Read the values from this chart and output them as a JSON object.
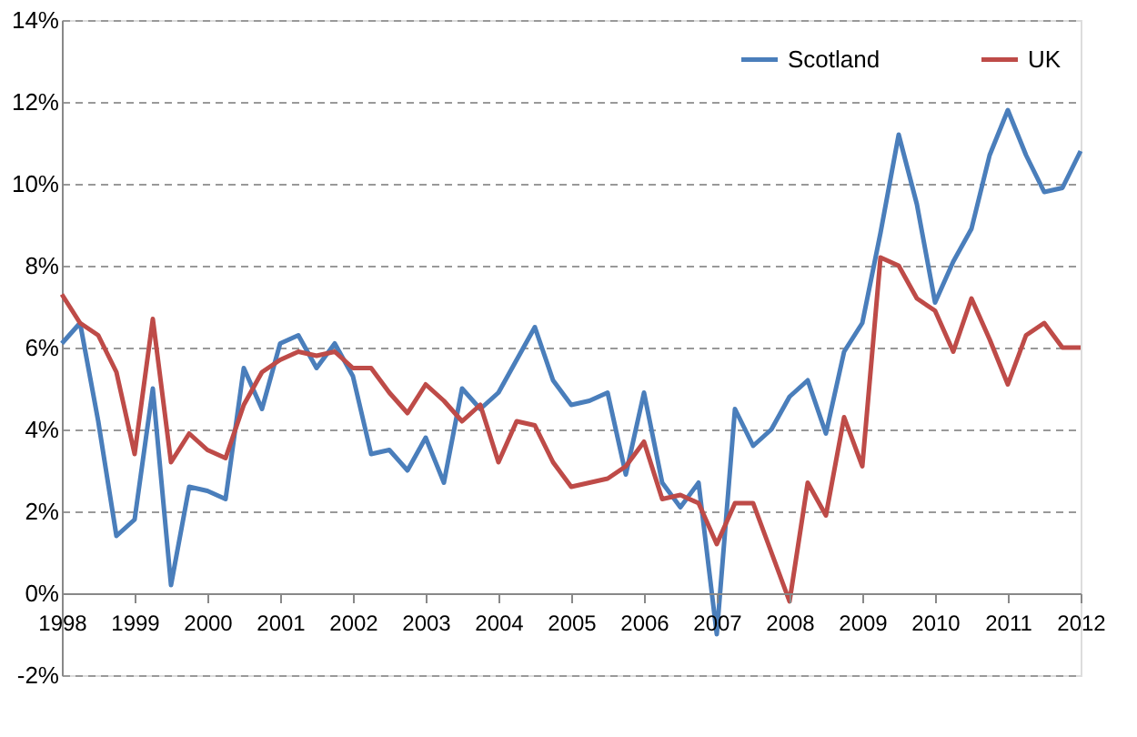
{
  "chart_data": {
    "type": "line",
    "x": [
      1998,
      1998.25,
      1998.5,
      1998.75,
      1999,
      1999.25,
      1999.5,
      1999.75,
      2000,
      2000.25,
      2000.5,
      2000.75,
      2001,
      2001.25,
      2001.5,
      2001.75,
      2002,
      2002.25,
      2002.5,
      2002.75,
      2003,
      2003.25,
      2003.5,
      2003.75,
      2004,
      2004.25,
      2004.5,
      2004.75,
      2005,
      2005.25,
      2005.5,
      2005.75,
      2006,
      2006.25,
      2006.5,
      2006.75,
      2007,
      2007.25,
      2007.5,
      2007.75,
      2008,
      2008.25,
      2008.5,
      2008.75,
      2009,
      2009.25,
      2009.5,
      2009.75,
      2010,
      2010.25,
      2010.5,
      2010.75,
      2011,
      2011.25,
      2011.5,
      2011.75,
      2012
    ],
    "series": [
      {
        "name": "Scotland",
        "color": "#4a7ebb",
        "values": [
          6.1,
          6.6,
          4.2,
          1.4,
          1.8,
          5.0,
          0.2,
          2.6,
          2.5,
          2.3,
          5.5,
          4.5,
          6.1,
          6.3,
          5.5,
          6.1,
          5.3,
          3.4,
          3.5,
          3.0,
          3.8,
          2.7,
          5.0,
          4.5,
          4.9,
          5.7,
          6.5,
          5.2,
          4.6,
          4.7,
          4.9,
          2.9,
          4.9,
          2.7,
          2.1,
          2.7,
          -1.0,
          4.5,
          3.6,
          4.0,
          4.8,
          5.2,
          3.9,
          5.9,
          6.6,
          8.8,
          11.2,
          9.5,
          7.1,
          8.1,
          8.9,
          10.7,
          11.8,
          10.7,
          9.8,
          9.9,
          10.8
        ]
      },
      {
        "name": "UK",
        "color": "#be4b48",
        "values": [
          7.3,
          6.6,
          6.3,
          5.4,
          3.4,
          6.7,
          3.2,
          3.9,
          3.5,
          3.3,
          4.6,
          5.4,
          5.7,
          5.9,
          5.8,
          5.9,
          5.5,
          5.5,
          4.9,
          4.4,
          5.1,
          4.7,
          4.2,
          4.6,
          3.2,
          4.2,
          4.1,
          3.2,
          2.6,
          2.7,
          2.8,
          3.1,
          3.7,
          2.3,
          2.4,
          2.2,
          1.2,
          2.2,
          2.2,
          1.0,
          -0.2,
          2.7,
          1.9,
          4.3,
          3.1,
          8.2,
          8.0,
          7.2,
          6.9,
          5.9,
          7.2,
          6.2,
          5.1,
          6.3,
          6.6,
          6.0,
          6.0
        ]
      }
    ],
    "xlim": [
      1998,
      2012
    ],
    "xticks": [
      1998,
      1999,
      2000,
      2001,
      2002,
      2003,
      2004,
      2005,
      2006,
      2007,
      2008,
      2009,
      2010,
      2011,
      2012
    ],
    "ylim": [
      -2,
      14
    ],
    "yticks": [
      {
        "value": -2,
        "label": "-2%"
      },
      {
        "value": 0,
        "label": "0%"
      },
      {
        "value": 2,
        "label": "2%"
      },
      {
        "value": 4,
        "label": "4%"
      },
      {
        "value": 6,
        "label": "6%"
      },
      {
        "value": 8,
        "label": "8%"
      },
      {
        "value": 10,
        "label": "10%"
      },
      {
        "value": 12,
        "label": "12%"
      },
      {
        "value": 14,
        "label": "14%"
      }
    ],
    "grid": "y",
    "legend": "top right",
    "line_style": "solid",
    "marker": "none"
  }
}
